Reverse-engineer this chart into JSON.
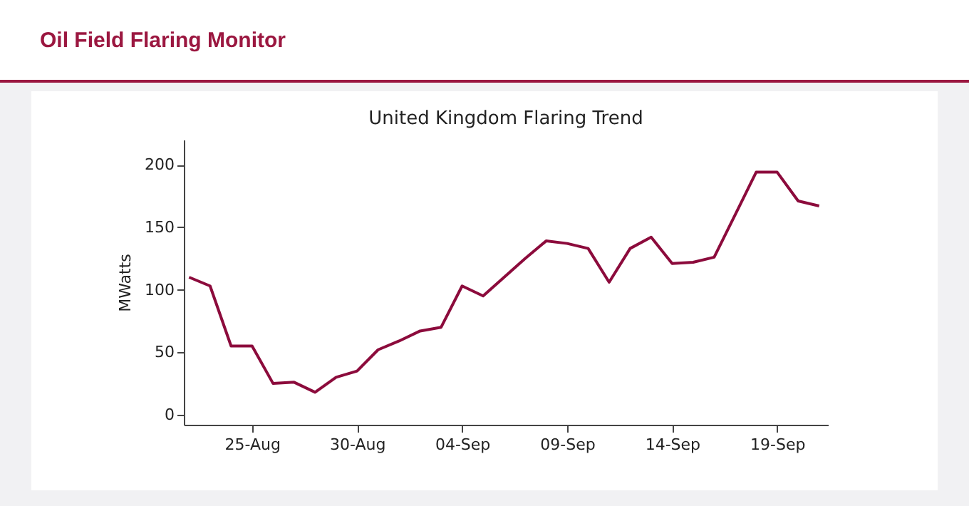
{
  "chart_data": {
    "type": "line",
    "title": "Oil Field Flaring Monitor",
    "subtitle": "United Kingdom Flaring Trend",
    "ylabel": "MWatts",
    "x": [
      "--08-22",
      "--08-23",
      "--08-24",
      "--08-25",
      "--08-26",
      "--08-27",
      "--08-28",
      "--08-29",
      "--08-30",
      "--08-31",
      "--09-01",
      "--09-02",
      "--09-03",
      "--09-04",
      "--09-05",
      "--09-06",
      "--09-07",
      "--09-08",
      "--09-09",
      "--09-10",
      "--09-11",
      "--09-12",
      "--09-13",
      "--09-14",
      "--09-15",
      "--09-16",
      "--09-17",
      "--09-18",
      "--09-19",
      "--09-20",
      "--09-21"
    ],
    "series": [
      {
        "color": "#8c0b3c",
        "values": [
          110,
          103,
          55,
          55,
          25,
          26,
          18,
          30,
          35,
          52,
          59,
          67,
          70,
          103,
          95,
          110,
          125,
          139,
          137,
          133,
          106,
          133,
          142,
          121,
          122,
          126,
          160,
          194,
          194,
          171,
          167
        ]
      }
    ],
    "xlim": [
      "--08-21T18:00",
      "--09-21T10:00"
    ],
    "xticks": [
      {
        "value": "--08-25",
        "label": "25-Aug"
      },
      {
        "value": "--08-30",
        "label": "30-Aug"
      },
      {
        "value": "--09-04",
        "label": "04-Sep"
      },
      {
        "value": "--09-09",
        "label": "09-Sep"
      },
      {
        "value": "--09-14",
        "label": "14-Sep"
      },
      {
        "value": "--09-19",
        "label": "19-Sep"
      }
    ],
    "ylim": [
      -8,
      220
    ],
    "yticks": [
      0,
      50,
      100,
      150,
      200
    ],
    "grid": false,
    "legend": false,
    "marker": "none",
    "line_style": "solid"
  }
}
